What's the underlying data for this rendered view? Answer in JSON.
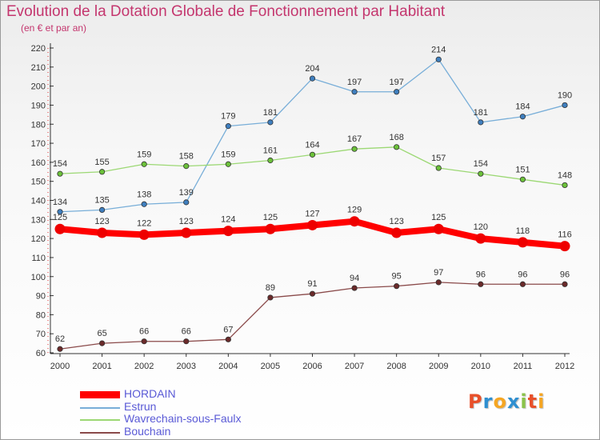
{
  "header": {
    "title": "Evolution de la Dotation Globale de Fonctionnement par Habitant",
    "subtitle": "(en € et par an)"
  },
  "logo": {
    "text": "Proxiti",
    "colors": [
      "#e8502a",
      "#2f8fd0",
      "#f5a623",
      "#2f8fd0",
      "#8bc34a",
      "#e8502a",
      "#f5a623"
    ]
  },
  "chart_data": {
    "type": "line",
    "title": "Evolution de la Dotation Globale de Fonctionnement par Habitant",
    "subtitle": "(en € et par an)",
    "x": [
      "2000",
      "2001",
      "2002",
      "2003",
      "2004",
      "2005",
      "2006",
      "2007",
      "2008",
      "2009",
      "2010",
      "2011",
      "2012"
    ],
    "ylim": [
      60,
      220
    ],
    "yticks": [
      60,
      70,
      80,
      90,
      100,
      110,
      120,
      130,
      140,
      150,
      160,
      170,
      180,
      190,
      200,
      210,
      220
    ],
    "grid": false,
    "legend_position": "bottom-left",
    "series": [
      {
        "name": "HORDAIN",
        "color": "#ff0000",
        "marker_color": "#ee0000",
        "emphasis": true,
        "values": [
          125,
          123,
          122,
          123,
          124,
          125,
          127,
          129,
          123,
          125,
          120,
          118,
          116
        ]
      },
      {
        "name": "Estrun",
        "color": "#78aed8",
        "marker_color": "#3f7fbf",
        "emphasis": false,
        "values": [
          134,
          135,
          138,
          139,
          179,
          181,
          204,
          197,
          197,
          214,
          181,
          184,
          190
        ]
      },
      {
        "name": "Wavrechain-sous-Faulx",
        "color": "#9cd874",
        "marker_color": "#6cc23a",
        "emphasis": false,
        "values": [
          154,
          155,
          159,
          158,
          159,
          161,
          164,
          167,
          168,
          157,
          154,
          151,
          148
        ]
      },
      {
        "name": "Bouchain",
        "color": "#8a4a4a",
        "marker_color": "#6b2a2a",
        "emphasis": false,
        "values": [
          62,
          65,
          66,
          66,
          67,
          89,
          91,
          94,
          95,
          97,
          96,
          96,
          96
        ]
      }
    ]
  }
}
